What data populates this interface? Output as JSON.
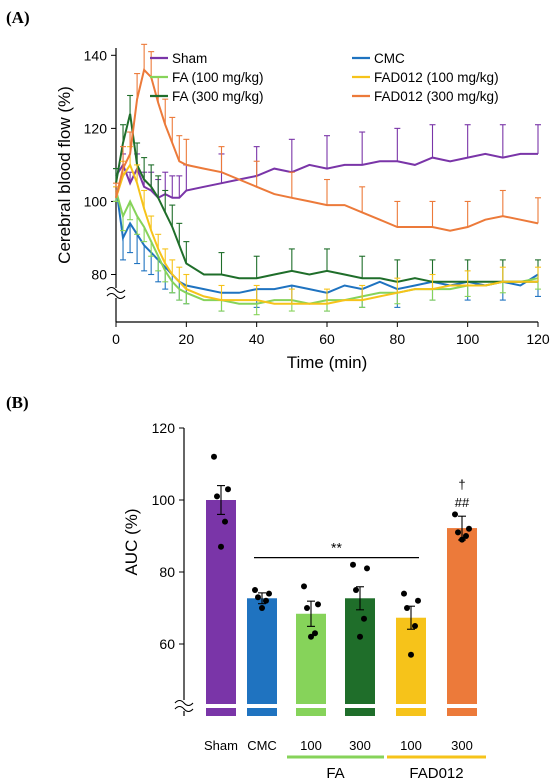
{
  "panel_a_label": "(A)",
  "panel_b_label": "(B)",
  "colors": {
    "sham": "#7a35a8",
    "cmc": "#1f73c0",
    "fa100": "#86d35a",
    "fa300": "#1f6e2a",
    "fad100": "#f6c31a",
    "fad300": "#ec7a3a"
  },
  "chart_data": [
    {
      "type": "line",
      "title": "",
      "xlabel": "Time (min)",
      "ylabel": "Cerebral blood flow (%)",
      "xlim": [
        0,
        120
      ],
      "ylim": [
        70,
        140
      ],
      "x_ticks": [
        0,
        20,
        40,
        60,
        80,
        100,
        120
      ],
      "y_ticks": [
        80,
        100,
        120,
        140
      ],
      "axis_break": true,
      "legend_position": "top",
      "grid": false,
      "series": [
        {
          "name": "Sham",
          "color": "#7a35a8",
          "error_bars": "up",
          "x": [
            0,
            2,
            4,
            6,
            8,
            10,
            12,
            14,
            16,
            18,
            20,
            25,
            30,
            35,
            40,
            45,
            50,
            55,
            60,
            65,
            70,
            75,
            80,
            85,
            90,
            95,
            100,
            105,
            110,
            115,
            120
          ],
          "y": [
            107,
            110,
            105,
            109,
            104,
            103,
            101,
            102,
            101,
            101,
            103,
            104,
            105,
            106,
            107,
            109,
            108,
            110,
            109,
            110,
            110,
            111,
            111,
            110,
            112,
            111,
            112,
            113,
            112,
            113,
            113
          ],
          "err": [
            2,
            3,
            3,
            4,
            4,
            5,
            5,
            6,
            6,
            6,
            7,
            8,
            8,
            8,
            8,
            9,
            9,
            9,
            9,
            9,
            9,
            9,
            9,
            9,
            9,
            9,
            9,
            9,
            9,
            9,
            8
          ]
        },
        {
          "name": "CMC",
          "color": "#1f73c0",
          "error_bars": "down",
          "x": [
            0,
            2,
            4,
            6,
            8,
            10,
            12,
            14,
            16,
            18,
            20,
            25,
            30,
            35,
            40,
            45,
            50,
            55,
            60,
            65,
            70,
            75,
            80,
            85,
            90,
            95,
            100,
            105,
            110,
            115,
            120
          ],
          "y": [
            104,
            90,
            94,
            91,
            88,
            86,
            84,
            82,
            80,
            78,
            77,
            76,
            75,
            75,
            76,
            76,
            77,
            76,
            75,
            77,
            76,
            78,
            76,
            77,
            78,
            77,
            78,
            77,
            78,
            77,
            80
          ],
          "err": [
            4,
            6,
            8,
            8,
            7,
            6,
            6,
            6,
            5,
            5,
            5,
            5,
            5,
            5,
            5,
            5,
            5,
            5,
            5,
            5,
            5,
            5,
            5,
            5,
            5,
            5,
            5,
            5,
            5,
            6,
            6
          ]
        },
        {
          "name": "FA (100 mg/kg)",
          "color": "#86d35a",
          "error_bars": "down",
          "x": [
            0,
            2,
            4,
            6,
            8,
            10,
            12,
            14,
            16,
            18,
            20,
            25,
            30,
            35,
            40,
            45,
            50,
            55,
            60,
            65,
            70,
            75,
            80,
            85,
            90,
            95,
            100,
            105,
            110,
            115,
            120
          ],
          "y": [
            103,
            96,
            100,
            96,
            93,
            89,
            85,
            81,
            78,
            76,
            75,
            73,
            73,
            72,
            72,
            73,
            73,
            72,
            73,
            73,
            74,
            75,
            75,
            76,
            76,
            76,
            77,
            77,
            78,
            78,
            79
          ],
          "err": [
            3,
            4,
            5,
            5,
            4,
            4,
            4,
            3,
            3,
            3,
            3,
            3,
            3,
            3,
            3,
            3,
            3,
            3,
            3,
            3,
            3,
            3,
            3,
            3,
            3,
            3,
            3,
            3,
            3,
            3,
            3
          ]
        },
        {
          "name": "FA (300 mg/kg)",
          "color": "#1f6e2a",
          "error_bars": "up",
          "x": [
            0,
            2,
            4,
            6,
            8,
            10,
            12,
            14,
            16,
            18,
            20,
            25,
            30,
            35,
            40,
            45,
            50,
            55,
            60,
            65,
            70,
            75,
            80,
            85,
            90,
            95,
            100,
            105,
            110,
            115,
            120
          ],
          "y": [
            105,
            116,
            124,
            110,
            106,
            104,
            101,
            97,
            93,
            88,
            83,
            80,
            80,
            79,
            79,
            80,
            81,
            80,
            81,
            80,
            79,
            79,
            78,
            79,
            78,
            78,
            78,
            78,
            78,
            78,
            78
          ],
          "err": [
            4,
            5,
            5,
            6,
            6,
            6,
            6,
            6,
            6,
            6,
            6,
            6,
            6,
            6,
            6,
            6,
            6,
            6,
            6,
            6,
            6,
            6,
            6,
            6,
            6,
            6,
            6,
            6,
            6,
            6,
            6
          ]
        },
        {
          "name": "FAD012 (100 mg/kg)",
          "color": "#f6c31a",
          "error_bars": "up",
          "x": [
            0,
            2,
            4,
            6,
            8,
            10,
            12,
            14,
            16,
            18,
            20,
            25,
            30,
            35,
            40,
            45,
            50,
            55,
            60,
            65,
            70,
            75,
            80,
            85,
            90,
            95,
            100,
            105,
            110,
            115,
            120
          ],
          "y": [
            101,
            107,
            110,
            105,
            98,
            92,
            87,
            83,
            80,
            78,
            76,
            74,
            73,
            73,
            73,
            72,
            72,
            72,
            72,
            73,
            73,
            74,
            75,
            76,
            76,
            77,
            77,
            77,
            78,
            78,
            78
          ],
          "err": [
            3,
            4,
            5,
            5,
            5,
            4,
            4,
            4,
            4,
            4,
            4,
            4,
            4,
            4,
            4,
            4,
            4,
            4,
            4,
            4,
            4,
            4,
            4,
            4,
            4,
            4,
            4,
            4,
            4,
            4,
            4
          ]
        },
        {
          "name": "FAD012 (300 mg/kg)",
          "color": "#ec7a3a",
          "error_bars": "up",
          "x": [
            0,
            2,
            4,
            6,
            8,
            10,
            12,
            14,
            16,
            18,
            20,
            25,
            30,
            35,
            40,
            45,
            50,
            55,
            60,
            65,
            70,
            75,
            80,
            85,
            90,
            95,
            100,
            105,
            110,
            115,
            120
          ],
          "y": [
            101,
            109,
            113,
            128,
            136,
            134,
            127,
            121,
            116,
            111,
            110,
            109,
            108,
            106,
            104,
            102,
            101,
            100,
            99,
            99,
            97,
            95,
            93,
            93,
            93,
            92,
            93,
            95,
            96,
            95,
            94
          ],
          "err": [
            4,
            6,
            6,
            7,
            7,
            7,
            7,
            7,
            7,
            7,
            7,
            7,
            7,
            7,
            7,
            7,
            7,
            7,
            7,
            7,
            7,
            7,
            7,
            7,
            7,
            7,
            7,
            7,
            7,
            7,
            7
          ]
        }
      ]
    },
    {
      "type": "bar",
      "title": "",
      "ylabel": "AUC (%)",
      "ylim": [
        40,
        120
      ],
      "y_ticks": [
        60,
        80,
        100,
        120
      ],
      "axis_break": true,
      "categories": [
        "Sham",
        "CMC",
        "100",
        "300",
        "100",
        "300"
      ],
      "groups": [
        {
          "label": "FA",
          "members": [
            2,
            3
          ],
          "color": "#86d35a"
        },
        {
          "label": "FAD012",
          "members": [
            4,
            5
          ],
          "color": "#f6c31a"
        }
      ],
      "values": [
        100,
        72.7,
        68.4,
        72.7,
        67.3,
        92.2
      ],
      "errors": [
        4.0,
        1.5,
        3.5,
        3.2,
        3.2,
        3.3
      ],
      "bar_colors": [
        "#7a35a8",
        "#1f73c0",
        "#86d35a",
        "#1f6e2a",
        "#f6c31a",
        "#ec7a3a"
      ],
      "points": [
        [
          112,
          103,
          101,
          94,
          87
        ],
        [
          75,
          74,
          73,
          72,
          70
        ],
        [
          76,
          71,
          70,
          63,
          62
        ],
        [
          82,
          81,
          75,
          67,
          62
        ],
        [
          74,
          72,
          70,
          65,
          57
        ],
        [
          96,
          92,
          91,
          90,
          89
        ]
      ],
      "annotations": [
        {
          "text": "**",
          "from": 1,
          "to": 4,
          "y": 84
        },
        {
          "text": "##",
          "bar": 5,
          "y": 98
        },
        {
          "text": "†",
          "bar": 5,
          "y": 103
        }
      ]
    }
  ]
}
